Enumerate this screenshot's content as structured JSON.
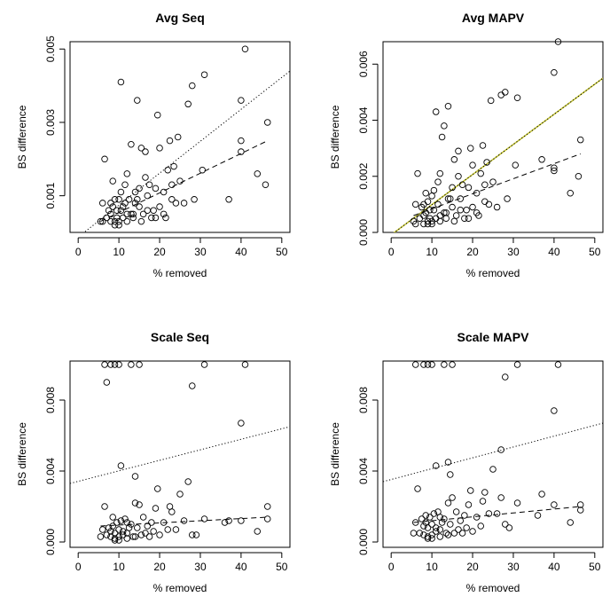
{
  "chart_data": [
    {
      "type": "scatter",
      "title": "Avg Seq",
      "xlabel": "% removed",
      "ylabel": "BS difference",
      "xlim": [
        -2,
        52
      ],
      "ylim": [
        0,
        0.0052
      ],
      "xticks": [
        0,
        10,
        20,
        30,
        40,
        50
      ],
      "yticks": [
        0.001,
        0.003,
        0.005
      ],
      "ytick_labels": [
        "0.001",
        "0.003",
        "0.005"
      ],
      "points": [
        [
          5.5,
          0.0003
        ],
        [
          6,
          0.0008
        ],
        [
          6.5,
          0.002
        ],
        [
          7,
          0.0004
        ],
        [
          7.5,
          0.0006
        ],
        [
          8,
          0.0003
        ],
        [
          8,
          0.0008
        ],
        [
          8.5,
          0.0014
        ],
        [
          8.5,
          0.0007
        ],
        [
          9,
          0.0003
        ],
        [
          9,
          0.0009
        ],
        [
          9.5,
          0.0004
        ],
        [
          10,
          0.0003
        ],
        [
          10,
          0.0009
        ],
        [
          10.5,
          0.0011
        ],
        [
          10.5,
          0.0006
        ],
        [
          11,
          0.0007
        ],
        [
          11,
          0.0004
        ],
        [
          11.5,
          0.0013
        ],
        [
          12,
          0.0016
        ],
        [
          12,
          0.0005
        ],
        [
          12.5,
          0.0009
        ],
        [
          13,
          0.0024
        ],
        [
          13.5,
          0.0004
        ],
        [
          14,
          0.0008
        ],
        [
          14,
          0.0011
        ],
        [
          14.5,
          0.0009
        ],
        [
          15,
          0.0012
        ],
        [
          15.5,
          0.0003
        ],
        [
          15.5,
          0.0023
        ],
        [
          16,
          0.0005
        ],
        [
          16.5,
          0.0015
        ],
        [
          16.5,
          0.0022
        ],
        [
          17,
          0.001
        ],
        [
          17.5,
          0.0013
        ],
        [
          18,
          0.0004
        ],
        [
          18.5,
          0.0006
        ],
        [
          19,
          0.0012
        ],
        [
          19.5,
          0.0032
        ],
        [
          20,
          0.0007
        ],
        [
          20,
          0.0023
        ],
        [
          21,
          0.0011
        ],
        [
          21.5,
          0.0004
        ],
        [
          22,
          0.0017
        ],
        [
          22.5,
          0.0025
        ],
        [
          23,
          0.0013
        ],
        [
          23.5,
          0.0018
        ],
        [
          24,
          0.0008
        ],
        [
          24.5,
          0.0026
        ],
        [
          25,
          0.0014
        ],
        [
          26,
          0.0008
        ],
        [
          27,
          0.0035
        ],
        [
          28,
          0.004
        ],
        [
          28.5,
          0.0009
        ],
        [
          30.5,
          0.0017
        ],
        [
          31,
          0.0043
        ],
        [
          37,
          0.0009
        ],
        [
          40,
          0.0022
        ],
        [
          40,
          0.0025
        ],
        [
          40,
          0.0036
        ],
        [
          41,
          0.005
        ],
        [
          44,
          0.0016
        ],
        [
          46,
          0.0013
        ],
        [
          46.5,
          0.003
        ],
        [
          10.5,
          0.0041
        ],
        [
          14.5,
          0.0036
        ],
        [
          6,
          0.0003
        ],
        [
          8,
          0.0005
        ],
        [
          9,
          0.0002
        ],
        [
          10,
          0.0002
        ],
        [
          12,
          0.0003
        ],
        [
          13,
          0.0005
        ],
        [
          17,
          0.0006
        ],
        [
          19,
          0.0004
        ],
        [
          21,
          0.0005
        ],
        [
          23,
          0.0009
        ],
        [
          9.5,
          0.0006
        ],
        [
          11.5,
          0.0008
        ],
        [
          13.5,
          0.0005
        ],
        [
          15,
          0.0007
        ]
      ],
      "dotted_line": [
        [
          -2,
          -0.0003
        ],
        [
          52,
          0.0044
        ]
      ],
      "dashed_line": [
        [
          5.5,
          0.0003
        ],
        [
          46.5,
          0.0025
        ]
      ]
    },
    {
      "type": "scatter",
      "title": "Avg MAPV",
      "xlabel": "% removed",
      "ylabel": "BS difference",
      "xlim": [
        -2,
        52
      ],
      "ylim": [
        0,
        0.0068
      ],
      "xticks": [
        0,
        10,
        20,
        30,
        40,
        50
      ],
      "yticks": [
        0,
        0.002,
        0.004,
        0.006
      ],
      "ytick_labels": [
        "0.000",
        "0.002",
        "0.004",
        "0.006"
      ],
      "points": [
        [
          5.5,
          0.0004
        ],
        [
          6,
          0.001
        ],
        [
          6.5,
          0.0021
        ],
        [
          7,
          0.0005
        ],
        [
          7.5,
          0.0009
        ],
        [
          8,
          0.0003
        ],
        [
          8,
          0.001
        ],
        [
          8.5,
          0.0014
        ],
        [
          8.5,
          0.0007
        ],
        [
          9,
          0.0004
        ],
        [
          9,
          0.0011
        ],
        [
          9.5,
          0.0005
        ],
        [
          10,
          0.0004
        ],
        [
          10,
          0.0013
        ],
        [
          10.5,
          0.0015
        ],
        [
          10.5,
          0.0008
        ],
        [
          11,
          0.0043
        ],
        [
          11,
          0.0005
        ],
        [
          11.5,
          0.0018
        ],
        [
          12,
          0.0021
        ],
        [
          12,
          0.0006
        ],
        [
          12.5,
          0.0034
        ],
        [
          13,
          0.0038
        ],
        [
          13.5,
          0.0005
        ],
        [
          14,
          0.0012
        ],
        [
          14,
          0.0045
        ],
        [
          14.5,
          0.0012
        ],
        [
          15,
          0.0016
        ],
        [
          15.5,
          0.0004
        ],
        [
          15.5,
          0.0026
        ],
        [
          16,
          0.0006
        ],
        [
          16.5,
          0.002
        ],
        [
          16.5,
          0.0029
        ],
        [
          17,
          0.0012
        ],
        [
          17.5,
          0.0017
        ],
        [
          18,
          0.0005
        ],
        [
          18.5,
          0.0008
        ],
        [
          19,
          0.0016
        ],
        [
          19.5,
          0.003
        ],
        [
          20,
          0.0009
        ],
        [
          20,
          0.0024
        ],
        [
          21,
          0.0014
        ],
        [
          21.5,
          0.0006
        ],
        [
          22,
          0.0021
        ],
        [
          22.5,
          0.0031
        ],
        [
          23,
          0.0017
        ],
        [
          23.5,
          0.0025
        ],
        [
          24,
          0.001
        ],
        [
          24.5,
          0.0047
        ],
        [
          25,
          0.0018
        ],
        [
          26,
          0.0009
        ],
        [
          27,
          0.0049
        ],
        [
          28,
          0.005
        ],
        [
          28.5,
          0.0012
        ],
        [
          30.5,
          0.0024
        ],
        [
          31,
          0.0048
        ],
        [
          37,
          0.0026
        ],
        [
          40,
          0.0022
        ],
        [
          40,
          0.0023
        ],
        [
          40,
          0.0057
        ],
        [
          41,
          0.0068
        ],
        [
          44,
          0.0014
        ],
        [
          46,
          0.002
        ],
        [
          46.5,
          0.0033
        ],
        [
          6,
          0.0003
        ],
        [
          8,
          0.0006
        ],
        [
          9,
          0.0003
        ],
        [
          10,
          0.0003
        ],
        [
          12,
          0.0004
        ],
        [
          13,
          0.0007
        ],
        [
          17,
          0.0008
        ],
        [
          19,
          0.0005
        ],
        [
          21,
          0.0007
        ],
        [
          23,
          0.0011
        ],
        [
          9.5,
          0.0008
        ],
        [
          11.5,
          0.001
        ],
        [
          13.5,
          0.0007
        ],
        [
          15,
          0.0009
        ]
      ],
      "dotted_line": [
        [
          -2,
          -0.0003
        ],
        [
          52,
          0.0055
        ]
      ],
      "solid_line": [
        [
          -2,
          -0.0003
        ],
        [
          52,
          0.0055
        ]
      ],
      "dashed_line": [
        [
          5.5,
          0.0006
        ],
        [
          46.5,
          0.0028
        ]
      ]
    },
    {
      "type": "scatter",
      "title": "Scale Seq",
      "xlabel": "% removed",
      "ylabel": "BS difference",
      "xlim": [
        -2,
        52
      ],
      "ylim": [
        -0.0003,
        0.0102
      ],
      "xticks": [
        0,
        10,
        20,
        30,
        40,
        50
      ],
      "yticks": [
        0,
        0.004,
        0.008
      ],
      "ytick_labels": [
        "0.000",
        "0.004",
        "0.008"
      ],
      "points": [
        [
          6.5,
          0.01
        ],
        [
          7,
          0.009
        ],
        [
          8,
          0.01
        ],
        [
          9,
          0.01
        ],
        [
          10,
          0.01
        ],
        [
          13,
          0.01
        ],
        [
          15,
          0.01
        ],
        [
          28,
          0.0088
        ],
        [
          31,
          0.01
        ],
        [
          40,
          0.0067
        ],
        [
          41,
          0.01
        ],
        [
          10.5,
          0.0043
        ],
        [
          14,
          0.0037
        ],
        [
          5.5,
          0.0003
        ],
        [
          6,
          0.0007
        ],
        [
          6.5,
          0.002
        ],
        [
          7,
          0.0004
        ],
        [
          7.5,
          0.0008
        ],
        [
          8,
          0.0003
        ],
        [
          8,
          0.0006
        ],
        [
          8.5,
          0.0014
        ],
        [
          8.5,
          0.0009
        ],
        [
          9,
          0.0002
        ],
        [
          9,
          0.0005
        ],
        [
          9.5,
          0.0011
        ],
        [
          10,
          0.0003
        ],
        [
          10,
          0.0007
        ],
        [
          10.5,
          0.0012
        ],
        [
          11,
          0.0006
        ],
        [
          11,
          0.0004
        ],
        [
          11.5,
          0.0013
        ],
        [
          12,
          0.0011
        ],
        [
          12,
          0.0005
        ],
        [
          12.5,
          0.0008
        ],
        [
          13,
          0.001
        ],
        [
          13.5,
          0.0003
        ],
        [
          14,
          0.0022
        ],
        [
          14.5,
          0.0008
        ],
        [
          15,
          0.0021
        ],
        [
          15.5,
          0.0004
        ],
        [
          16,
          0.0014
        ],
        [
          16.5,
          0.0005
        ],
        [
          17,
          0.0009
        ],
        [
          17.5,
          0.0003
        ],
        [
          18,
          0.0011
        ],
        [
          18.5,
          0.0006
        ],
        [
          19,
          0.0019
        ],
        [
          19.5,
          0.003
        ],
        [
          20,
          0.0004
        ],
        [
          21,
          0.0011
        ],
        [
          22,
          0.0007
        ],
        [
          22.5,
          0.002
        ],
        [
          23,
          0.0017
        ],
        [
          24,
          0.0007
        ],
        [
          25,
          0.0027
        ],
        [
          26,
          0.0012
        ],
        [
          27,
          0.0034
        ],
        [
          28,
          0.0004
        ],
        [
          29,
          0.0004
        ],
        [
          31,
          0.0013
        ],
        [
          36,
          0.0011
        ],
        [
          37,
          0.0012
        ],
        [
          40,
          0.0012
        ],
        [
          44,
          0.0006
        ],
        [
          46.5,
          0.002
        ],
        [
          46.5,
          0.0013
        ],
        [
          9,
          0.0001
        ],
        [
          10,
          0.0001
        ],
        [
          12,
          0.0002
        ],
        [
          14,
          0.0003
        ]
      ],
      "dotted_line": [
        [
          -2,
          0.0033
        ],
        [
          52,
          0.0065
        ]
      ],
      "dashed_line": [
        [
          5.5,
          0.0009
        ],
        [
          46.5,
          0.0014
        ]
      ]
    },
    {
      "type": "scatter",
      "title": "Scale MAPV",
      "xlabel": "% removed",
      "ylabel": "BS difference",
      "xlim": [
        -2,
        52
      ],
      "ylim": [
        -0.0003,
        0.0102
      ],
      "xticks": [
        0,
        10,
        20,
        30,
        40,
        50
      ],
      "yticks": [
        0,
        0.004,
        0.008
      ],
      "ytick_labels": [
        "0.000",
        "0.004",
        "0.008"
      ],
      "points": [
        [
          6,
          0.01
        ],
        [
          8,
          0.01
        ],
        [
          9,
          0.01
        ],
        [
          10,
          0.01
        ],
        [
          13,
          0.01
        ],
        [
          15,
          0.01
        ],
        [
          28,
          0.0093
        ],
        [
          31,
          0.01
        ],
        [
          40,
          0.0074
        ],
        [
          41,
          0.01
        ],
        [
          11,
          0.0043
        ],
        [
          14,
          0.0045
        ],
        [
          14.5,
          0.0038
        ],
        [
          27,
          0.0052
        ],
        [
          5.5,
          0.0005
        ],
        [
          6,
          0.0011
        ],
        [
          6.5,
          0.003
        ],
        [
          7,
          0.0005
        ],
        [
          7.5,
          0.0013
        ],
        [
          8,
          0.0004
        ],
        [
          8,
          0.0009
        ],
        [
          8.5,
          0.0015
        ],
        [
          8.5,
          0.0011
        ],
        [
          9,
          0.0003
        ],
        [
          9,
          0.0008
        ],
        [
          9.5,
          0.0014
        ],
        [
          10,
          0.0004
        ],
        [
          10,
          0.001
        ],
        [
          10.5,
          0.0016
        ],
        [
          11,
          0.0008
        ],
        [
          11,
          0.0006
        ],
        [
          11.5,
          0.0017
        ],
        [
          12,
          0.0014
        ],
        [
          12,
          0.0007
        ],
        [
          12.5,
          0.0011
        ],
        [
          13,
          0.0013
        ],
        [
          13.5,
          0.0005
        ],
        [
          14,
          0.0022
        ],
        [
          14.5,
          0.001
        ],
        [
          15,
          0.0025
        ],
        [
          15.5,
          0.0005
        ],
        [
          16,
          0.0017
        ],
        [
          16.5,
          0.0007
        ],
        [
          17,
          0.0012
        ],
        [
          17.5,
          0.0005
        ],
        [
          18,
          0.0015
        ],
        [
          18.5,
          0.0008
        ],
        [
          19,
          0.0021
        ],
        [
          19.5,
          0.0029
        ],
        [
          20,
          0.0006
        ],
        [
          21,
          0.0014
        ],
        [
          22,
          0.0009
        ],
        [
          22.5,
          0.0023
        ],
        [
          23,
          0.0028
        ],
        [
          24,
          0.0016
        ],
        [
          25,
          0.0041
        ],
        [
          26,
          0.0016
        ],
        [
          27,
          0.0025
        ],
        [
          28,
          0.001
        ],
        [
          29,
          0.0008
        ],
        [
          31,
          0.0022
        ],
        [
          36,
          0.0015
        ],
        [
          37,
          0.0027
        ],
        [
          40,
          0.0021
        ],
        [
          44,
          0.0011
        ],
        [
          46.5,
          0.0021
        ],
        [
          46.5,
          0.0018
        ],
        [
          9,
          0.0002
        ],
        [
          10,
          0.0002
        ],
        [
          12,
          0.0003
        ],
        [
          14,
          0.0004
        ]
      ],
      "dotted_line": [
        [
          -2,
          0.0034
        ],
        [
          52,
          0.0067
        ]
      ],
      "dashed_line": [
        [
          5.5,
          0.0011
        ],
        [
          46.5,
          0.002
        ]
      ]
    }
  ]
}
